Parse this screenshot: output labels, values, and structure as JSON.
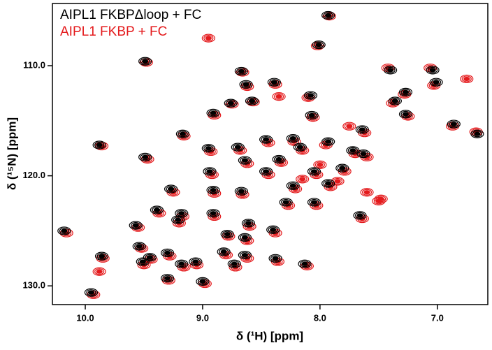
{
  "chart_data": {
    "type": "scatter",
    "xlabel": "δ (¹H) [ppm]",
    "ylabel": "δ (¹⁵N) [ppm]",
    "xlim": [
      10.28,
      6.57
    ],
    "ylim": [
      131.7,
      104.35
    ],
    "xticks": [
      {
        "value": 10,
        "label": "10.0"
      },
      {
        "value": 9,
        "label": "9.0"
      },
      {
        "value": 8,
        "label": "8.0"
      },
      {
        "value": 7,
        "label": "7.0"
      }
    ],
    "yticks": [
      {
        "value": 110,
        "label": "110.0"
      },
      {
        "value": 120,
        "label": "120.0"
      },
      {
        "value": 130,
        "label": "130.0"
      }
    ],
    "series": [
      {
        "name": "AIPL1  FKBPΔloop + FC",
        "color": "#000000",
        "x": [
          7.93,
          8.01,
          9.49,
          8.67,
          8.39,
          8.63,
          7.4,
          7.04,
          7.01,
          7.27,
          7.36,
          8.76,
          8.58,
          8.08,
          8.91,
          8.07,
          7.27,
          6.86,
          9.17,
          7.64,
          6.66,
          9.88,
          9.49,
          8.95,
          8.7,
          8.46,
          8.23,
          8.17,
          7.93,
          7.72,
          7.63,
          8.64,
          8.35,
          8.46,
          8.05,
          7.81,
          8.94,
          9.27,
          8.91,
          8.67,
          8.23,
          7.93,
          8.29,
          8.05,
          7.66,
          9.39,
          9.18,
          8.91,
          9.21,
          9.57,
          10.18,
          8.79,
          8.61,
          8.4,
          8.64,
          9.54,
          9.86,
          9.45,
          9.3,
          8.82,
          8.64,
          8.38,
          9.18,
          9.06,
          8.73,
          8.13,
          9.3,
          9.0,
          9.95,
          9.51
        ],
        "values": [
          105.43,
          108.1,
          109.6,
          110.5,
          111.5,
          111.7,
          110.4,
          110.4,
          111.5,
          112.4,
          113.2,
          113.4,
          113.2,
          112.7,
          114.3,
          114.5,
          114.4,
          115.3,
          116.2,
          115.8,
          116.2,
          117.2,
          118.3,
          117.5,
          117.4,
          116.7,
          116.6,
          117.4,
          116.9,
          117.7,
          118.0,
          118.6,
          118.5,
          119.6,
          119.6,
          119.3,
          119.6,
          121.2,
          121.3,
          121.4,
          120.9,
          120.7,
          122.4,
          122.4,
          123.6,
          123.1,
          123.4,
          123.4,
          124.0,
          124.5,
          125.0,
          125.3,
          124.3,
          124.9,
          125.6,
          126.4,
          127.3,
          127.4,
          127.0,
          126.9,
          127.2,
          127.5,
          128.0,
          127.8,
          128.0,
          128.0,
          129.3,
          129.6,
          130.6,
          127.8
        ]
      },
      {
        "name": "AIPL1  FKBP  + FC",
        "color": "#e41a1c",
        "x": [
          7.92,
          8.02,
          9.48,
          8.66,
          8.38,
          8.62,
          7.42,
          7.06,
          7.03,
          7.28,
          7.38,
          8.75,
          8.57,
          8.1,
          8.9,
          8.06,
          7.25,
          6.87,
          9.16,
          7.62,
          6.67,
          9.86,
          9.47,
          8.93,
          8.68,
          8.44,
          8.22,
          8.15,
          7.95,
          7.7,
          7.6,
          8.62,
          8.33,
          8.44,
          8.03,
          7.79,
          8.92,
          9.25,
          8.9,
          8.66,
          8.21,
          7.91,
          8.27,
          8.03,
          7.64,
          9.37,
          9.17,
          8.9,
          9.2,
          9.55,
          10.16,
          8.78,
          8.6,
          8.38,
          8.62,
          9.52,
          9.85,
          9.44,
          9.28,
          8.8,
          8.62,
          8.36,
          9.16,
          9.05,
          8.72,
          8.11,
          9.29,
          8.98,
          9.93,
          9.5,
          8.95,
          9.88,
          7.48,
          8.35,
          8.15,
          7.6,
          8.0,
          7.85,
          7.5,
          7.75,
          6.75
        ],
        "values": [
          105.5,
          108.2,
          109.7,
          110.6,
          111.7,
          111.9,
          110.2,
          110.2,
          111.8,
          112.6,
          113.4,
          113.5,
          113.3,
          112.9,
          114.5,
          114.7,
          114.6,
          115.5,
          116.4,
          116.1,
          116.0,
          117.3,
          118.5,
          117.8,
          117.7,
          117.0,
          116.9,
          117.7,
          117.2,
          118.0,
          118.3,
          118.9,
          118.8,
          119.9,
          119.9,
          119.6,
          119.9,
          121.5,
          121.6,
          121.7,
          121.2,
          121.0,
          122.7,
          122.7,
          123.9,
          123.4,
          123.7,
          123.7,
          124.3,
          124.7,
          125.2,
          125.5,
          124.6,
          125.2,
          125.9,
          126.6,
          127.5,
          127.6,
          127.3,
          127.2,
          127.5,
          127.8,
          128.3,
          128.1,
          128.3,
          128.2,
          129.5,
          129.8,
          130.8,
          128.1,
          107.5,
          128.7,
          122.1,
          112.8,
          120.3,
          121.5,
          119.0,
          120.5,
          122.3,
          115.5,
          111.2
        ]
      }
    ]
  }
}
